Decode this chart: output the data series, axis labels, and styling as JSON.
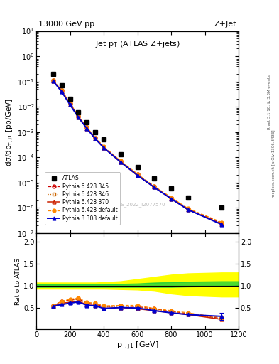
{
  "title": "Jet $p_T$ (ATLAS Z+jets)",
  "top_left_label": "13000 GeV pp",
  "top_right_label": "Z+Jet",
  "xlabel": "$p_{T,j1}$ [GeV]",
  "ylabel_main": "$d\\sigma/dp_{T,j1}$ [pb/GeV]",
  "ylabel_ratio": "Ratio to ATLAS",
  "watermark": "ATLAS_2022_I2077570",
  "right_label_top": "Rivet 3.1.10; ≥ 3.3M events",
  "right_label_bot": "mcplots.cern.ch [arXiv:1306.3436]",
  "atlas_x": [
    100,
    150,
    200,
    250,
    300,
    350,
    400,
    500,
    600,
    700,
    800,
    900,
    1100
  ],
  "atlas_y": [
    0.2,
    0.07,
    0.02,
    0.006,
    0.0025,
    0.001,
    0.0005,
    0.00013,
    4e-05,
    1.5e-05,
    6e-06,
    2.5e-06,
    1e-06
  ],
  "py6_345_y": [
    0.11,
    0.045,
    0.0135,
    0.0042,
    0.0015,
    0.00058,
    0.00026,
    7e-05,
    2.1e-05,
    7e-06,
    2.5e-06,
    9e-07,
    2.5e-07
  ],
  "py6_346_y": [
    0.108,
    0.044,
    0.0133,
    0.00415,
    0.00148,
    0.00057,
    0.000255,
    6.9e-05,
    2.05e-05,
    6.9e-06,
    2.45e-06,
    8.8e-07,
    2.45e-07
  ],
  "py6_370_y": [
    0.105,
    0.042,
    0.0125,
    0.0039,
    0.0014,
    0.00055,
    0.00024,
    6.5e-05,
    1.9e-05,
    6.5e-06,
    2.3e-06,
    8.5e-07,
    2.3e-07
  ],
  "py6_def_y": [
    0.11,
    0.045,
    0.0138,
    0.0043,
    0.00155,
    0.0006,
    0.00027,
    7.2e-05,
    2.2e-05,
    7.2e-06,
    2.6e-06,
    9.5e-07,
    2.7e-07
  ],
  "py8_def_y": [
    0.105,
    0.04,
    0.012,
    0.0038,
    0.00138,
    0.00054,
    0.00024,
    6.5e-05,
    1.95e-05,
    6.5e-06,
    2.3e-06,
    8.5e-07,
    2.2e-07
  ],
  "ratio_x": [
    100,
    150,
    200,
    250,
    300,
    350,
    400,
    500,
    600,
    700,
    800,
    900,
    1100
  ],
  "ratio_band_x": [
    0,
    100,
    150,
    200,
    250,
    300,
    350,
    400,
    500,
    600,
    700,
    800,
    900,
    1100,
    1200
  ],
  "ratio_band_green_lo": [
    0.97,
    0.97,
    0.97,
    0.97,
    0.97,
    0.97,
    0.97,
    0.97,
    0.97,
    0.97,
    0.97,
    0.97,
    0.98,
    0.99,
    1.0
  ],
  "ratio_band_green_hi": [
    1.03,
    1.03,
    1.03,
    1.03,
    1.03,
    1.03,
    1.03,
    1.03,
    1.04,
    1.05,
    1.07,
    1.08,
    1.09,
    1.1,
    1.1
  ],
  "ratio_band_yellow_lo": [
    0.93,
    0.93,
    0.93,
    0.93,
    0.93,
    0.93,
    0.93,
    0.93,
    0.92,
    0.91,
    0.88,
    0.82,
    0.78,
    0.75,
    0.75
  ],
  "ratio_band_yellow_hi": [
    1.07,
    1.07,
    1.07,
    1.07,
    1.07,
    1.07,
    1.07,
    1.08,
    1.1,
    1.15,
    1.2,
    1.25,
    1.28,
    1.3,
    1.3
  ],
  "ratio_py6_345_y": [
    0.55,
    0.64,
    0.67,
    0.7,
    0.6,
    0.58,
    0.52,
    0.54,
    0.52,
    0.47,
    0.42,
    0.36,
    0.25
  ],
  "ratio_py6_346_y": [
    0.54,
    0.63,
    0.66,
    0.69,
    0.59,
    0.57,
    0.51,
    0.53,
    0.51,
    0.46,
    0.41,
    0.35,
    0.24
  ],
  "ratio_py6_370_y": [
    0.53,
    0.6,
    0.62,
    0.65,
    0.56,
    0.55,
    0.48,
    0.5,
    0.47,
    0.43,
    0.38,
    0.34,
    0.23
  ],
  "ratio_py6_def_y": [
    0.55,
    0.64,
    0.69,
    0.72,
    0.62,
    0.6,
    0.54,
    0.55,
    0.55,
    0.48,
    0.43,
    0.38,
    0.27
  ],
  "ratio_py8_def_y": [
    0.53,
    0.57,
    0.6,
    0.63,
    0.55,
    0.54,
    0.48,
    0.5,
    0.49,
    0.43,
    0.38,
    0.34,
    0.3
  ],
  "ratio_py8_err_lo": [
    0.02,
    0.02,
    0.02,
    0.02,
    0.02,
    0.02,
    0.02,
    0.02,
    0.02,
    0.02,
    0.02,
    0.02,
    0.08
  ],
  "ratio_py8_err_hi": [
    0.02,
    0.02,
    0.02,
    0.02,
    0.02,
    0.02,
    0.02,
    0.02,
    0.02,
    0.02,
    0.02,
    0.02,
    0.08
  ],
  "color_py6_345": "#cc0000",
  "color_py6_346": "#cc6600",
  "color_py6_370": "#cc2200",
  "color_py6_def": "#ff8800",
  "color_py8_def": "#0000cc",
  "ylim_main": [
    1e-07,
    10
  ],
  "ylim_ratio": [
    0.0,
    2.2
  ],
  "xlim": [
    0,
    1200
  ]
}
